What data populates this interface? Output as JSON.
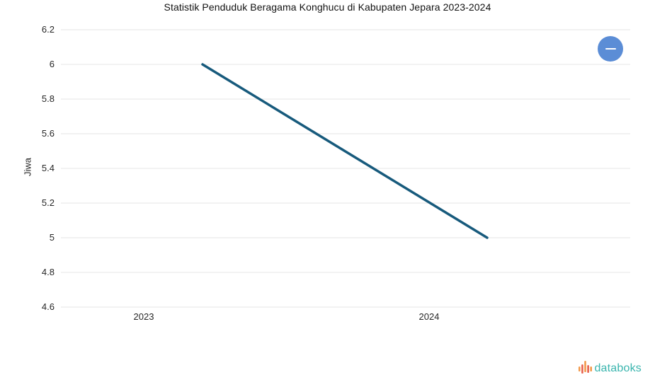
{
  "chart_data": {
    "type": "line",
    "title": "Statistik Penduduk Beragama Konghucu di Kabupaten Jepara 2023-2024",
    "xlabel": "",
    "ylabel": "Jiwa",
    "categories": [
      "2023",
      "2024"
    ],
    "values": [
      6,
      5
    ],
    "ylim": [
      4.6,
      6.2
    ],
    "yticks": [
      "6.2",
      "6",
      "5.8",
      "5.6",
      "5.4",
      "5.2",
      "5",
      "4.8",
      "4.6"
    ],
    "grid": "horizontal",
    "legend": "none",
    "line_color": "#175A7C",
    "grid_color": "#E6E6E6"
  },
  "controls": {
    "collapse_button": {
      "icon": "minus",
      "color": "#5B8DD6"
    }
  },
  "footer": {
    "logo_text": "databoks",
    "logo_text_color": "#3AB5AE",
    "logo_bar_colors": [
      "#F2994A",
      "#E8604C"
    ]
  }
}
